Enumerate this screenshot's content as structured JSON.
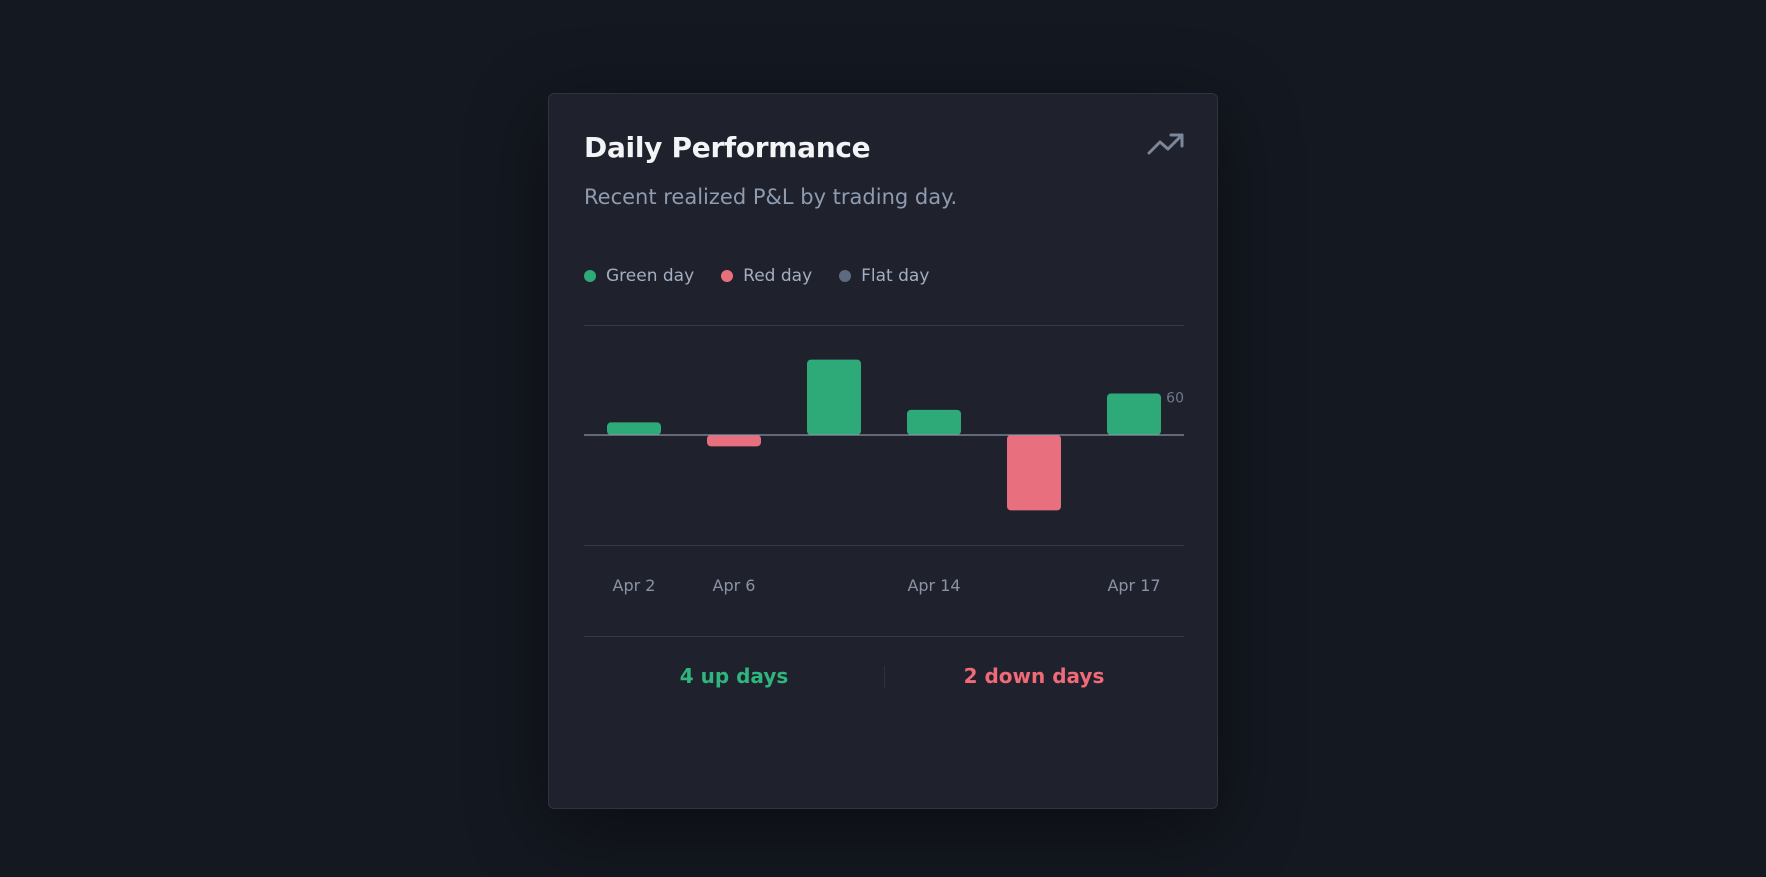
{
  "card": {
    "title": "Daily Performance",
    "subtitle": "Recent realized P&L by trading day.",
    "icon": "trending-up-icon"
  },
  "legend": [
    {
      "label": "Green day",
      "color": "#2eaa78"
    },
    {
      "label": "Red day",
      "color": "#e8707e"
    },
    {
      "label": "Flat day",
      "color": "#5d6a80"
    }
  ],
  "chart_data": {
    "type": "bar",
    "title": "Daily Performance",
    "subtitle": "Recent realized P&L by trading day.",
    "categories": [
      "Apr 2",
      "Apr 6",
      "",
      "Apr 14",
      "",
      "Apr 17"
    ],
    "values": [
      20,
      -18,
      120,
      40,
      -120,
      66
    ],
    "colors": [
      "#2eaa78",
      "#e8707e",
      "#2eaa78",
      "#2eaa78",
      "#e8707e",
      "#2eaa78"
    ],
    "ylim": [
      -175,
      175
    ],
    "visible_tick_label": "60",
    "grid": true,
    "legend_position": "top-left"
  },
  "summary": {
    "up_label": "4 up days",
    "down_label": "2 down days",
    "up_color": "#2eb67e",
    "down_color": "#f06a78"
  },
  "colors": {
    "background": "#141820",
    "card": "#1f222c",
    "axis": "#8a93a6",
    "grid": "#353a46"
  }
}
